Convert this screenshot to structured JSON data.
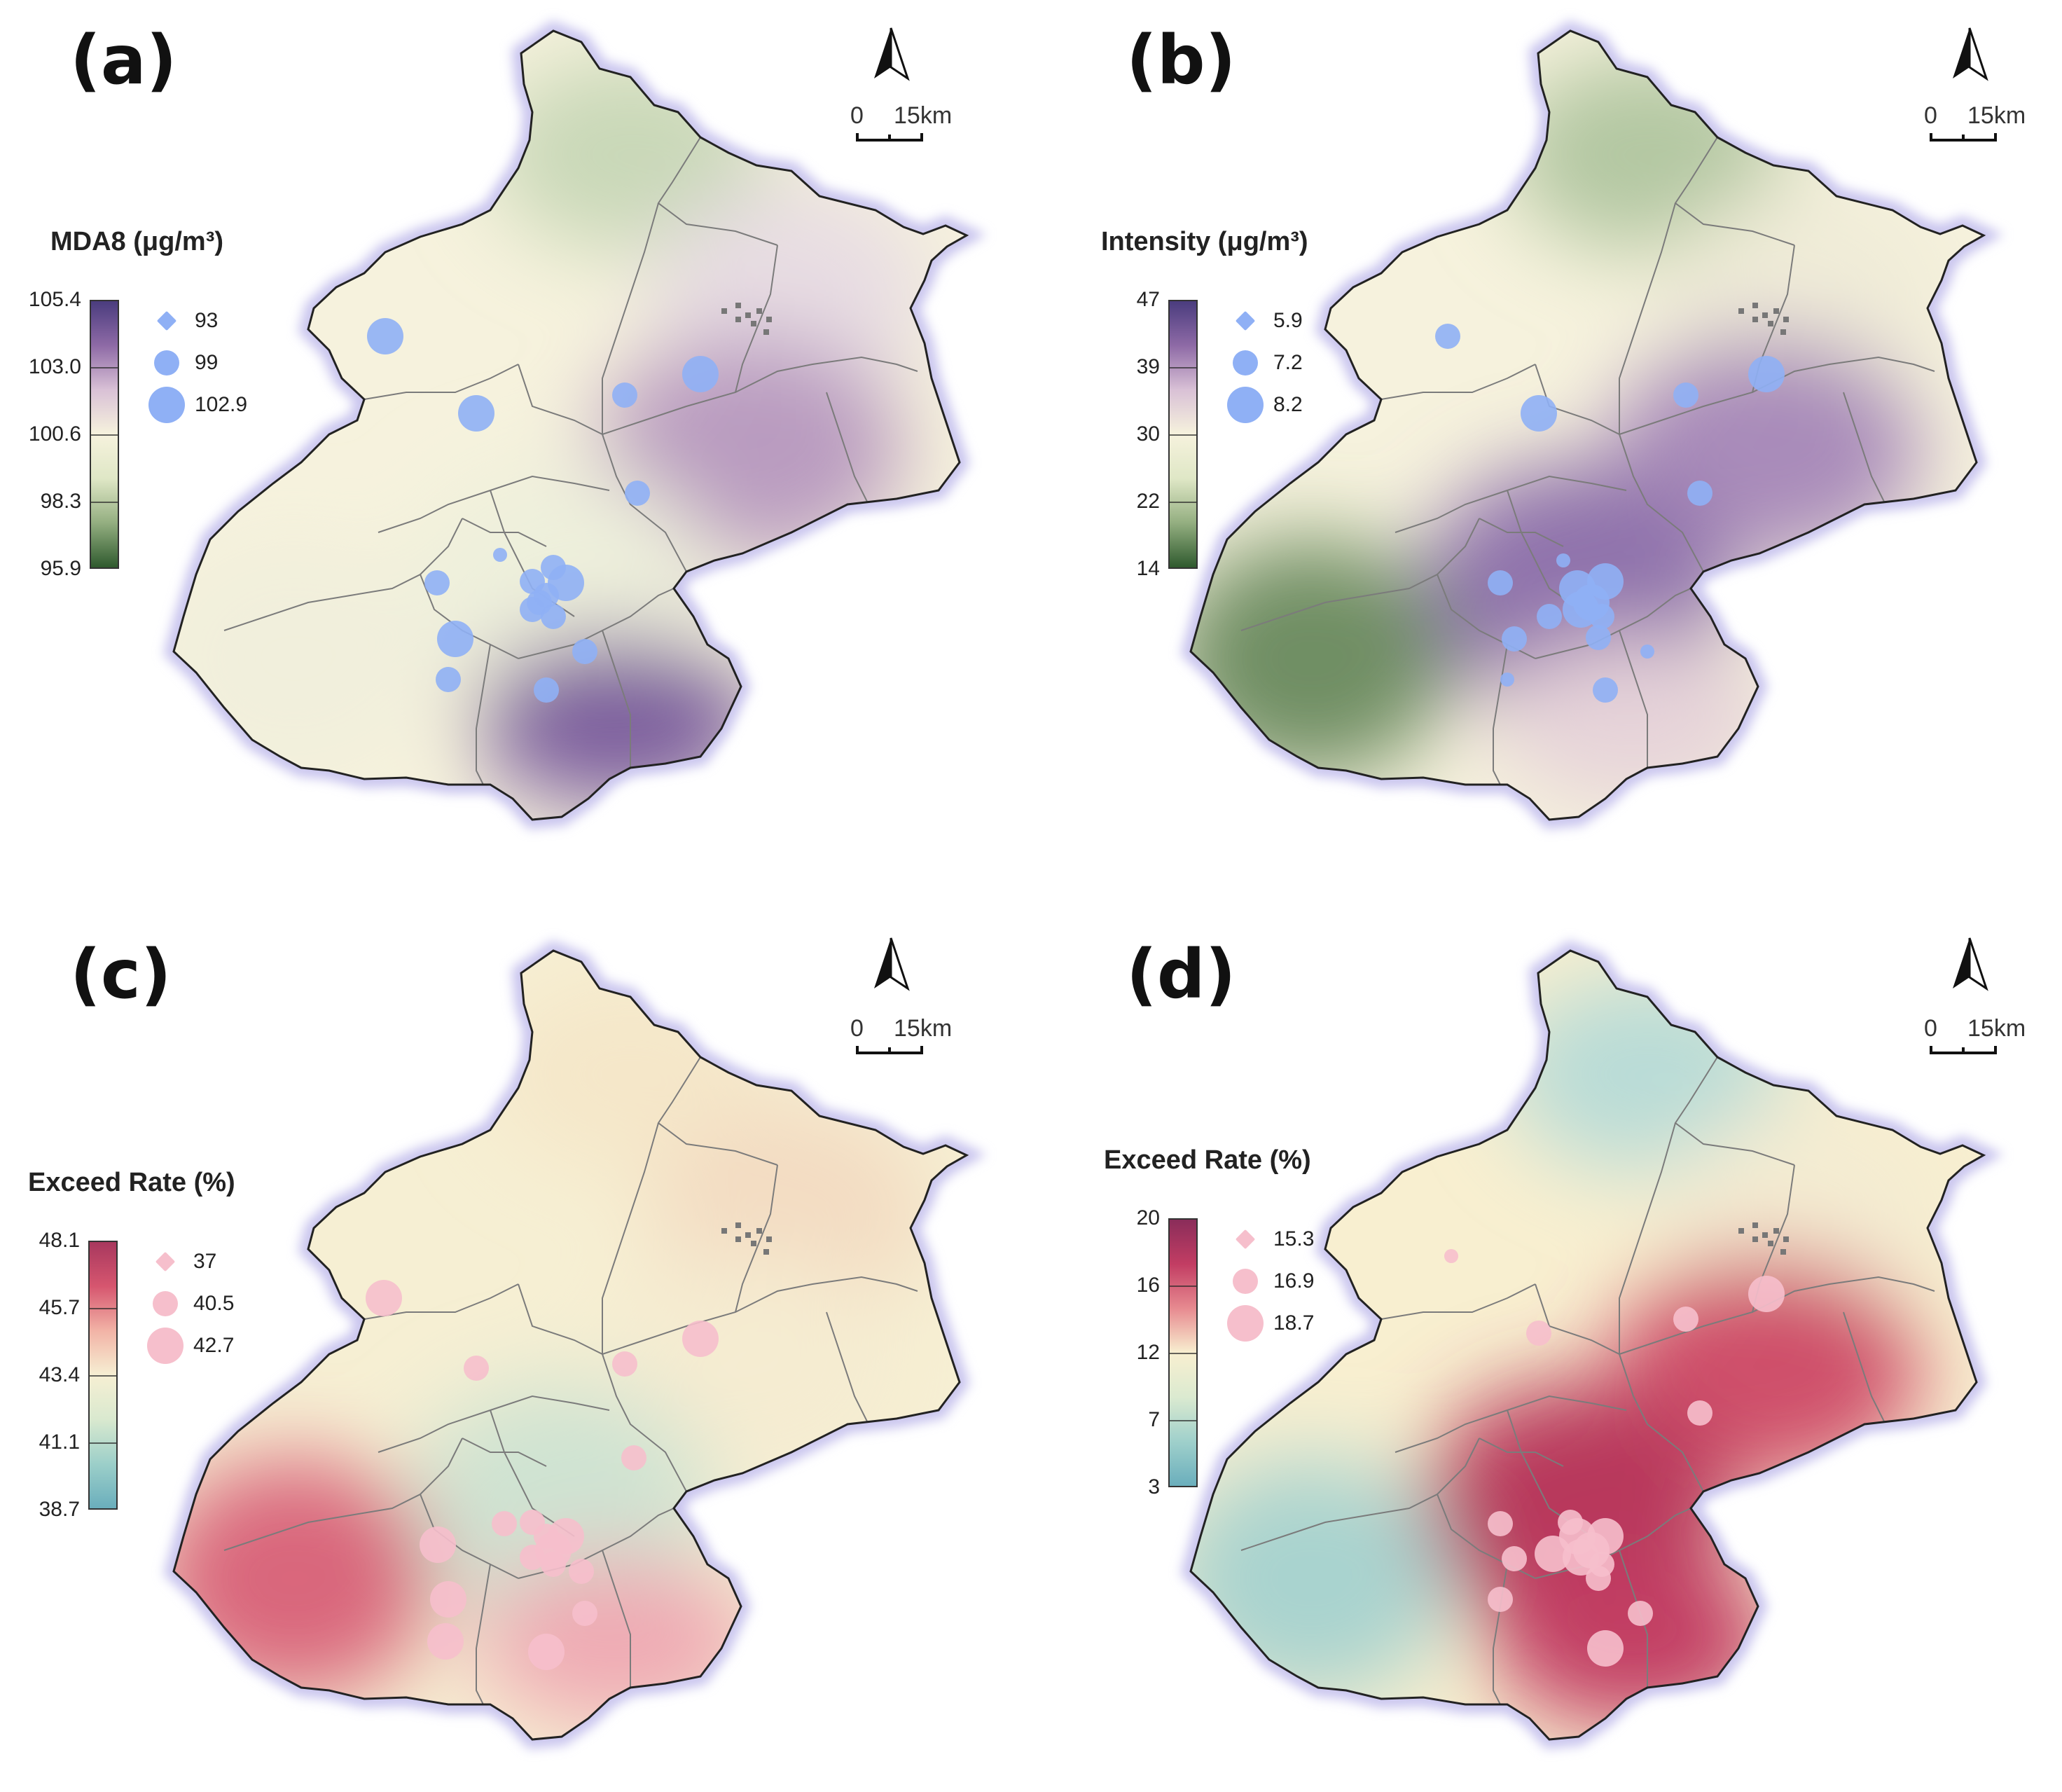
{
  "panels": [
    {
      "label": "(a)",
      "legend_title": "MDA8 (μg/m³)",
      "colorbar_ticks": [
        "105.4",
        "103.0",
        "100.6",
        "98.3",
        "95.9"
      ],
      "colorbar_colors": [
        "#4a3c7e",
        "#8e6aa6",
        "#d9c1d6",
        "#f6f2dd",
        "#dfe7c6",
        "#93ae80",
        "#2f5a2e"
      ],
      "marker_labels": [
        "93",
        "99",
        "102.9"
      ],
      "marker_color": "#8fb0f5",
      "scale_labels": [
        "0",
        "15km"
      ],
      "region_colors": {
        "north": "#c9d8b8",
        "northeast": "#e8dde3",
        "east": "#b99bc0",
        "center": "#eef0dc",
        "southwest": "#f1efdc",
        "south": "#7d5f9e"
      }
    },
    {
      "label": "(b)",
      "legend_title": "Intensity (μg/m³)",
      "colorbar_ticks": [
        "47",
        "39",
        "30",
        "22",
        "14"
      ],
      "colorbar_colors": [
        "#4a3c7e",
        "#8e6aa6",
        "#d9c1d6",
        "#f6f2dd",
        "#dfe7c6",
        "#93ae80",
        "#2f5a2e"
      ],
      "marker_labels": [
        "5.9",
        "7.2",
        "8.2"
      ],
      "marker_color": "#8fb0f5",
      "scale_labels": [
        "0",
        "15km"
      ],
      "region_colors": {
        "north": "#b3c7a2",
        "northeast": "#f0ecd8",
        "east": "#a98bba",
        "center": "#8f72ac",
        "southwest": "#6f8e63",
        "south": "#e6d3d9"
      }
    },
    {
      "label": "(c)",
      "legend_title": "Exceed Rate (%)",
      "colorbar_ticks": [
        "48.1",
        "45.7",
        "43.4",
        "41.1",
        "38.7"
      ],
      "colorbar_colors": [
        "#a8385e",
        "#d6566f",
        "#f2b3a6",
        "#f6efd3",
        "#d9e9cf",
        "#9ccfc9",
        "#6aaebc"
      ],
      "marker_labels": [
        "37",
        "40.5",
        "42.7"
      ],
      "marker_color": "#f6bfcc",
      "scale_labels": [
        "0",
        "15km"
      ],
      "region_colors": {
        "north": "#f5e7c9",
        "northeast": "#f3dcc2",
        "east": "#f5ecd1",
        "center": "#cfe3d2",
        "southwest": "#d9667c",
        "south": "#efaab4"
      }
    },
    {
      "label": "(d)",
      "legend_title": "Exceed Rate (%)",
      "colorbar_ticks": [
        "20",
        "16",
        "12",
        "7",
        "3"
      ],
      "colorbar_colors": [
        "#8a2d5a",
        "#c23d63",
        "#e78a90",
        "#f8efd0",
        "#dbead0",
        "#9fd0cb",
        "#6aaebc"
      ],
      "marker_labels": [
        "15.3",
        "16.9",
        "18.7"
      ],
      "marker_color": "#f6bfcc",
      "scale_labels": [
        "0",
        "15km"
      ],
      "region_colors": {
        "north": "#b9dcd7",
        "northeast": "#f4ecd2",
        "east": "#cf4f6b",
        "center": "#b8395c",
        "southwest": "#a9d3cf",
        "south": "#c23d63"
      }
    }
  ]
}
